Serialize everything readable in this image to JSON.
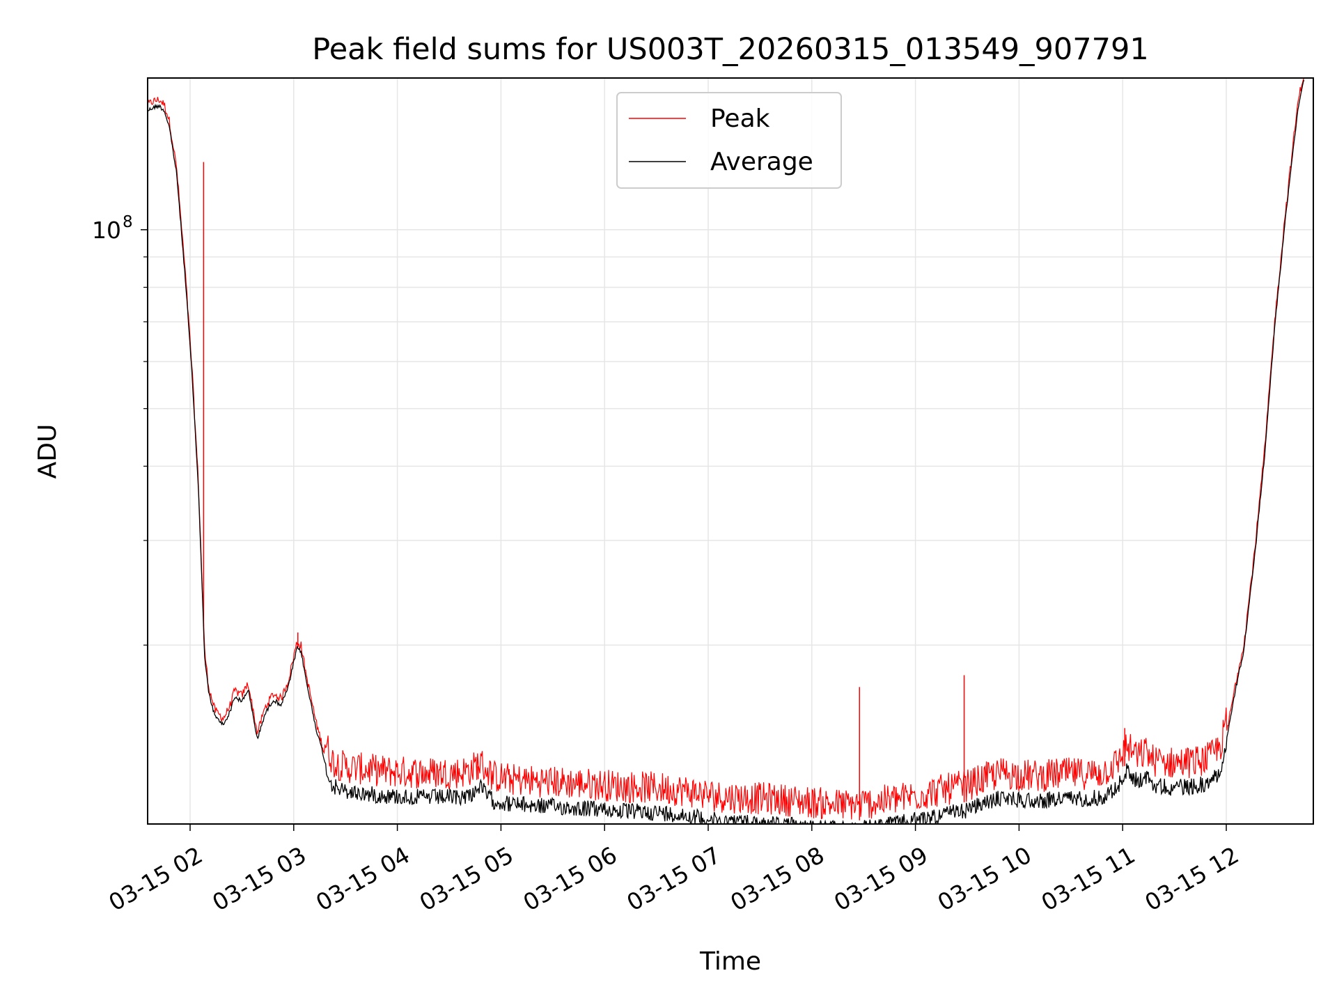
{
  "chart_data": {
    "type": "line",
    "title": "Peak field sums for US003T_20260315_013549_907791",
    "xlabel": "Time",
    "ylabel": "ADU",
    "yscale": "log",
    "ylim": [
      10000000,
      180000000
    ],
    "xlim_hours": [
      1.59,
      12.84
    ],
    "x_ticks": [
      {
        "hour": 2,
        "label": "03-15 02"
      },
      {
        "hour": 3,
        "label": "03-15 03"
      },
      {
        "hour": 4,
        "label": "03-15 04"
      },
      {
        "hour": 5,
        "label": "03-15 05"
      },
      {
        "hour": 6,
        "label": "03-15 06"
      },
      {
        "hour": 7,
        "label": "03-15 07"
      },
      {
        "hour": 8,
        "label": "03-15 08"
      },
      {
        "hour": 9,
        "label": "03-15 09"
      },
      {
        "hour": 10,
        "label": "03-15 10"
      },
      {
        "hour": 11,
        "label": "03-15 11"
      },
      {
        "hour": 12,
        "label": "03-15 12"
      }
    ],
    "y_major_tick": {
      "value": 100000000,
      "base": "10",
      "exponent": "8"
    },
    "y_minor_ticks": [
      20000000,
      30000000,
      40000000,
      50000000,
      60000000,
      70000000,
      80000000,
      90000000
    ],
    "grid": true,
    "legend_position": "upper-center",
    "series": [
      {
        "name": "Peak",
        "color": "#ff0000",
        "spikes": [
          [
            2.13,
            130000000
          ],
          [
            3.04,
            21000000
          ],
          [
            4.78,
            12500000
          ],
          [
            8.46,
            17000000
          ],
          [
            9.47,
            17800000
          ],
          [
            11.02,
            14500000
          ],
          [
            12.19,
            21000000
          ]
        ],
        "noise": 0.1
      },
      {
        "name": "Average",
        "color": "#000000",
        "points": [
          [
            1.59,
            160000000
          ],
          [
            1.65,
            162000000
          ],
          [
            1.7,
            163000000
          ],
          [
            1.75,
            160000000
          ],
          [
            1.8,
            150000000
          ],
          [
            1.87,
            125000000
          ],
          [
            1.95,
            85000000
          ],
          [
            2.02,
            57000000
          ],
          [
            2.08,
            37000000
          ],
          [
            2.12,
            24000000
          ],
          [
            2.14,
            19300000
          ],
          [
            2.18,
            16700000
          ],
          [
            2.24,
            15300000
          ],
          [
            2.32,
            14800000
          ],
          [
            2.38,
            15500000
          ],
          [
            2.43,
            16500000
          ],
          [
            2.5,
            16200000
          ],
          [
            2.56,
            17000000
          ],
          [
            2.61,
            15200000
          ],
          [
            2.65,
            14000000
          ],
          [
            2.72,
            15400000
          ],
          [
            2.8,
            16300000
          ],
          [
            2.88,
            16000000
          ],
          [
            2.95,
            17200000
          ],
          [
            3.03,
            19900000
          ],
          [
            3.07,
            19700000
          ],
          [
            3.13,
            17200000
          ],
          [
            3.22,
            14500000
          ],
          [
            3.3,
            12900000
          ],
          [
            3.38,
            11950000
          ],
          [
            3.5,
            11700000
          ],
          [
            3.7,
            11600000
          ],
          [
            3.95,
            11500000
          ],
          [
            4.25,
            11450000
          ],
          [
            4.6,
            11450000
          ],
          [
            4.72,
            11600000
          ],
          [
            4.79,
            11950000
          ],
          [
            4.84,
            11700000
          ],
          [
            4.92,
            11300000
          ],
          [
            5.1,
            11150000
          ],
          [
            5.5,
            11050000
          ],
          [
            5.9,
            10950000
          ],
          [
            6.2,
            10850000
          ],
          [
            6.5,
            10800000
          ],
          [
            6.75,
            10700000
          ],
          [
            6.95,
            10550000
          ],
          [
            7.1,
            10450000
          ],
          [
            7.3,
            10400000
          ],
          [
            7.6,
            10350000
          ],
          [
            7.9,
            10250000
          ],
          [
            8.15,
            10150000
          ],
          [
            8.35,
            10100000
          ],
          [
            8.6,
            10200000
          ],
          [
            8.9,
            10400000
          ],
          [
            9.2,
            10650000
          ],
          [
            9.5,
            10900000
          ],
          [
            9.7,
            11250000
          ],
          [
            9.85,
            11450000
          ],
          [
            10.0,
            11350000
          ],
          [
            10.2,
            11300000
          ],
          [
            10.4,
            11400000
          ],
          [
            10.6,
            11400000
          ],
          [
            10.8,
            11450000
          ],
          [
            10.95,
            11900000
          ],
          [
            11.04,
            12700000
          ],
          [
            11.1,
            12400000
          ],
          [
            11.15,
            12150000
          ],
          [
            11.22,
            12450000
          ],
          [
            11.3,
            12000000
          ],
          [
            11.45,
            11900000
          ],
          [
            11.7,
            11950000
          ],
          [
            11.85,
            12150000
          ],
          [
            11.95,
            12800000
          ],
          [
            12.02,
            14500000
          ],
          [
            12.09,
            17000000
          ],
          [
            12.17,
            19800000
          ],
          [
            12.27,
            28000000
          ],
          [
            12.37,
            42000000
          ],
          [
            12.47,
            70000000
          ],
          [
            12.57,
            105000000
          ],
          [
            12.65,
            140000000
          ],
          [
            12.7,
            165000000
          ],
          [
            12.75,
            180000000
          ]
        ],
        "noise": 0.07
      }
    ]
  }
}
